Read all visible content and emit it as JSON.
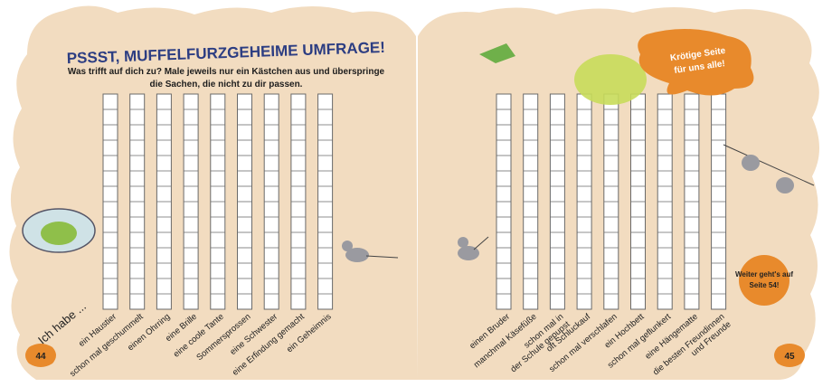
{
  "header": {
    "title": "PSSST, MUFFELFURZGEHEIME UMFRAGE!",
    "instructions": [
      "Was trifft auf dich zu? Male jeweils nur ein Kästchen aus und überspringe",
      "die Sachen, die nicht zu dir passen."
    ]
  },
  "intro": "Ich habe ...",
  "left_labels": [
    [
      "ein Haustier"
    ],
    [
      "schon mal geschummelt"
    ],
    [
      "einen Ohrring"
    ],
    [
      "eine Brille"
    ],
    [
      "eine coole Tante"
    ],
    [
      "Sommersprossen"
    ],
    [
      "eine Schwester"
    ],
    [
      "eine Erfindung gemacht"
    ],
    [
      "ein Geheimnis"
    ]
  ],
  "right_labels": [
    [
      "einen Bruder"
    ],
    [
      "manchmal Käsefüße"
    ],
    [
      "schon mal in",
      "der Schule gepupst"
    ],
    [
      "oft Schluckauf"
    ],
    [
      "schon mal verschlafen"
    ],
    [
      "ein Hochbett"
    ],
    [
      "schon mal geflunkert"
    ],
    [
      "eine Hängematte"
    ],
    [
      "die besten Freundinnen",
      "und Freunde"
    ]
  ],
  "badge": [
    "Krötige Seite",
    "für uns alle!"
  ],
  "next_page": [
    "Weiter geht's auf",
    "Seite 54!"
  ],
  "page_numbers": [
    "44",
    "45"
  ]
}
